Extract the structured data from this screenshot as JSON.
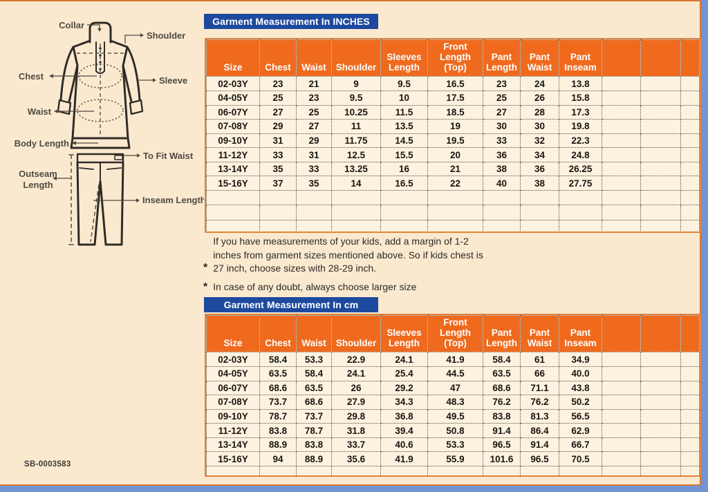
{
  "diagram": {
    "collar": "Collar",
    "shoulder": "Shoulder",
    "chest": "Chest",
    "sleeve": "Sleeve",
    "waist": "Waist",
    "body_length": "Body Length",
    "to_fit_waist": "To Fit Waist",
    "outseam_line1": "Outseam",
    "outseam_line2": "Length",
    "inseam": "Inseam Length"
  },
  "tables": {
    "inches": {
      "title": "Garment Measurement In INCHES",
      "columns": [
        "Size",
        "Chest",
        "Waist",
        "Shoulder",
        "Sleeves Length",
        "Front Length (Top)",
        "Pant Length",
        "Pant Waist",
        "Pant Inseam"
      ],
      "rows": [
        [
          "02-03Y",
          "23",
          "21",
          "9",
          "9.5",
          "16.5",
          "23",
          "24",
          "13.8"
        ],
        [
          "04-05Y",
          "25",
          "23",
          "9.5",
          "10",
          "17.5",
          "25",
          "26",
          "15.8"
        ],
        [
          "06-07Y",
          "27",
          "25",
          "10.25",
          "11.5",
          "18.5",
          "27",
          "28",
          "17.3"
        ],
        [
          "07-08Y",
          "29",
          "27",
          "11",
          "13.5",
          "19",
          "30",
          "30",
          "19.8"
        ],
        [
          "09-10Y",
          "31",
          "29",
          "11.75",
          "14.5",
          "19.5",
          "33",
          "32",
          "22.3"
        ],
        [
          "11-12Y",
          "33",
          "31",
          "12.5",
          "15.5",
          "20",
          "36",
          "34",
          "24.8"
        ],
        [
          "13-14Y",
          "35",
          "33",
          "13.25",
          "16",
          "21",
          "38",
          "36",
          "26.25"
        ],
        [
          "15-16Y",
          "37",
          "35",
          "14",
          "16.5",
          "22",
          "40",
          "38",
          "27.75"
        ]
      ]
    },
    "cm": {
      "title": "Garment Measurement In cm",
      "columns": [
        "Size",
        "Chest",
        "Waist",
        "Shoulder",
        "Sleeves Length",
        "Front Length (Top)",
        "Pant Length",
        "Pant Waist",
        "Pant Inseam"
      ],
      "rows": [
        [
          "02-03Y",
          "58.4",
          "53.3",
          "22.9",
          "24.1",
          "41.9",
          "58.4",
          "61",
          "34.9"
        ],
        [
          "04-05Y",
          "63.5",
          "58.4",
          "24.1",
          "25.4",
          "44.5",
          "63.5",
          "66",
          "40.0"
        ],
        [
          "06-07Y",
          "68.6",
          "63.5",
          "26",
          "29.2",
          "47",
          "68.6",
          "71.1",
          "43.8"
        ],
        [
          "07-08Y",
          "73.7",
          "68.6",
          "27.9",
          "34.3",
          "48.3",
          "76.2",
          "76.2",
          "50.2"
        ],
        [
          "09-10Y",
          "78.7",
          "73.7",
          "29.8",
          "36.8",
          "49.5",
          "83.8",
          "81.3",
          "56.5"
        ],
        [
          "11-12Y",
          "83.8",
          "78.7",
          "31.8",
          "39.4",
          "50.8",
          "91.4",
          "86.4",
          "62.9"
        ],
        [
          "13-14Y",
          "88.9",
          "83.8",
          "33.7",
          "40.6",
          "53.3",
          "96.5",
          "91.4",
          "66.7"
        ],
        [
          "15-16Y",
          "94",
          "88.9",
          "35.6",
          "41.9",
          "55.9",
          "101.6",
          "96.5",
          "70.5"
        ]
      ]
    }
  },
  "notes": {
    "bullet": "*",
    "items": [
      "If you have measurements of your kids, add a margin of 1-2 inches from garment sizes mentioned above. So if kids chest is 27 inch, choose sizes with 28-29 inch.",
      "In case of any doubt, always choose larger size"
    ]
  },
  "footer": {
    "code": "SB-0003583"
  },
  "colors": {
    "header_orange": "#F06A1E",
    "title_blue": "#1D4A9F",
    "panel_cream": "#FBE9CF",
    "cell_cream": "#FDF2DF",
    "frame_blue": "#7394D2",
    "border_orange": "#D8752E"
  }
}
